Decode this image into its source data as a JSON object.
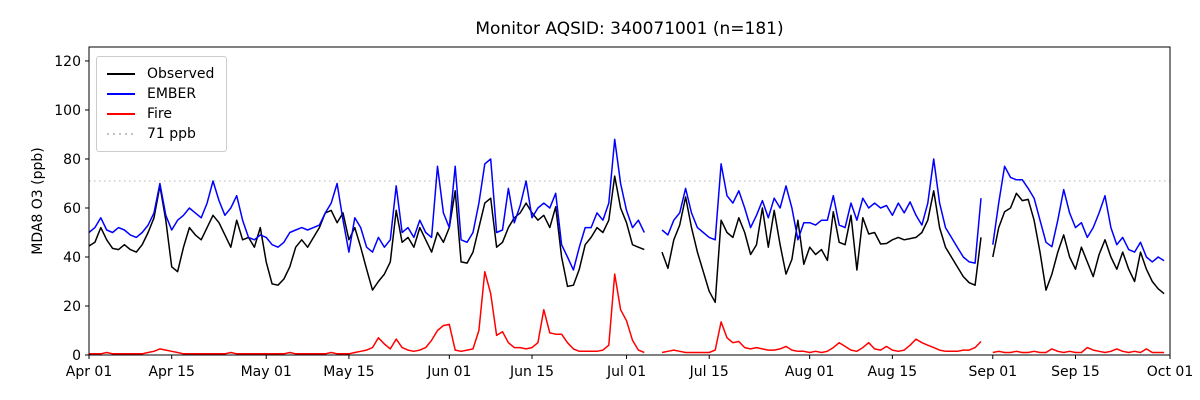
{
  "chart_data": {
    "type": "line",
    "title": "Monitor AQSID: 340071001 (n=181)",
    "ylabel": "MDA8 O3 (ppb)",
    "xlabel": "",
    "grid": false,
    "legend_position": "upper left",
    "ylim": [
      0,
      125.7
    ],
    "y_ticks": [
      0,
      20,
      40,
      60,
      80,
      100,
      120
    ],
    "x_range_days": 183,
    "x_ticks": [
      {
        "day": 0,
        "label": "Apr 01"
      },
      {
        "day": 14,
        "label": "Apr 15"
      },
      {
        "day": 30,
        "label": "May 01"
      },
      {
        "day": 44,
        "label": "May 15"
      },
      {
        "day": 61,
        "label": "Jun 01"
      },
      {
        "day": 75,
        "label": "Jun 15"
      },
      {
        "day": 91,
        "label": "Jul 01"
      },
      {
        "day": 105,
        "label": "Jul 15"
      },
      {
        "day": 122,
        "label": "Aug 01"
      },
      {
        "day": 136,
        "label": "Aug 15"
      },
      {
        "day": 153,
        "label": "Sep 01"
      },
      {
        "day": 167,
        "label": "Sep 15"
      },
      {
        "day": 183,
        "label": "Oct 01"
      }
    ],
    "threshold": {
      "value": 71,
      "label": "71 ppb",
      "color": "#c4c4c4",
      "style": "dotted"
    },
    "series": [
      {
        "name": "Observed",
        "color": "#000000",
        "values": [
          44.5,
          46,
          52,
          47,
          43.5,
          43,
          45,
          43,
          42,
          45,
          50,
          56,
          69,
          55,
          36,
          34,
          44,
          52,
          49,
          47,
          52,
          57,
          54,
          49,
          44,
          55,
          47,
          48,
          44,
          52,
          38,
          29,
          28.5,
          31,
          36,
          44,
          47,
          44,
          48,
          52,
          58,
          59,
          54,
          58,
          47,
          52,
          44,
          35,
          26.5,
          30,
          33,
          38,
          59,
          46,
          48,
          44,
          52,
          47,
          42,
          50,
          46,
          52,
          67,
          38,
          37.5,
          42,
          52,
          62,
          64,
          44,
          46,
          52,
          56,
          58,
          62,
          58,
          55,
          57,
          52,
          60.5,
          40,
          28,
          28.5,
          35,
          45,
          48,
          52,
          50,
          55,
          73,
          60,
          54,
          45,
          44,
          43,
          null,
          null,
          42,
          35.4,
          47,
          53,
          64.5,
          52,
          42,
          34,
          26,
          21.5,
          55,
          50,
          48,
          56,
          50,
          41,
          45,
          60,
          44,
          59,
          45,
          33,
          39,
          55,
          37,
          44,
          41,
          43,
          38.6,
          58.5,
          46,
          45,
          57,
          34.7,
          56,
          49.4,
          50,
          45.3,
          45.5,
          47,
          48,
          47,
          47.5,
          48,
          50,
          55,
          67,
          52,
          44,
          40,
          36,
          32,
          29.5,
          28.5,
          48,
          null,
          40,
          52,
          58.5,
          60,
          66,
          63,
          63.5,
          55,
          42,
          26.5,
          33,
          42,
          49,
          40,
          35,
          44,
          38,
          32,
          41,
          47,
          40,
          35,
          42,
          35,
          30,
          42,
          35,
          30,
          27,
          25
        ]
      },
      {
        "name": "EMBER",
        "color": "#0000ff",
        "values": [
          50,
          52,
          56,
          51,
          50,
          52,
          51,
          49,
          48,
          50,
          53,
          58,
          70,
          57,
          51,
          55,
          57,
          60,
          58,
          56,
          62,
          71,
          63,
          57,
          60,
          65,
          55,
          48,
          47,
          49,
          48,
          45,
          44,
          46,
          50,
          51,
          52,
          51,
          52,
          53,
          58,
          62,
          70,
          55,
          42,
          56,
          52,
          44,
          42,
          48,
          44,
          47,
          69,
          50,
          52,
          48,
          55,
          50,
          48,
          77,
          58,
          52,
          77,
          47,
          46,
          50,
          62,
          78,
          80,
          50,
          51,
          68,
          54,
          61,
          71,
          56,
          60,
          62,
          60,
          66,
          45,
          40,
          34.7,
          44,
          52,
          52,
          58,
          55,
          62,
          88,
          70,
          59,
          52,
          55,
          50,
          null,
          null,
          51,
          49,
          55,
          58,
          68,
          58,
          52,
          50,
          48,
          47,
          78,
          65,
          62,
          67,
          60,
          52,
          57,
          63,
          56,
          64,
          60,
          69,
          60,
          47,
          54,
          54,
          53,
          55,
          55,
          65,
          53,
          52,
          62,
          55,
          64,
          60,
          62,
          60,
          61,
          57,
          62,
          58,
          62.5,
          57,
          53,
          62,
          80,
          62,
          52,
          48,
          44,
          40,
          38,
          37.5,
          64,
          null,
          45,
          62,
          77,
          72.5,
          71.5,
          71.5,
          68,
          64,
          55,
          46,
          44.2,
          55,
          67.5,
          58,
          52,
          54,
          48,
          52,
          58,
          65,
          52,
          45,
          48,
          43,
          42,
          46,
          40,
          38,
          40,
          38.5
        ]
      },
      {
        "name": "Fire",
        "color": "#ff0000",
        "values": [
          0.5,
          0.5,
          0.5,
          1,
          0.5,
          0.5,
          0.5,
          0.5,
          0.5,
          0.5,
          1,
          1.5,
          2.5,
          2,
          1.5,
          1,
          0.5,
          0.5,
          0.5,
          0.5,
          0.5,
          0.5,
          0.5,
          0.5,
          1,
          0.5,
          0.5,
          0.5,
          0.5,
          0.5,
          0.5,
          0.5,
          0.5,
          0.5,
          1,
          0.5,
          0.5,
          0.5,
          0.5,
          0.5,
          0.5,
          1,
          0.5,
          0.5,
          0.5,
          1,
          1.5,
          2,
          3,
          7,
          4.5,
          2.5,
          6.5,
          3,
          2,
          1.5,
          2,
          3,
          6,
          10,
          12,
          12.5,
          2,
          1.5,
          2,
          2.5,
          10,
          34,
          25,
          8,
          9.5,
          5,
          3,
          3,
          2.5,
          3,
          5,
          18.5,
          9,
          8.5,
          8.5,
          5,
          2.5,
          1.5,
          1.5,
          1.5,
          1.5,
          2,
          4,
          33,
          18.5,
          14,
          6,
          2,
          1,
          null,
          null,
          1,
          1.5,
          2,
          1.5,
          1,
          1,
          1,
          1,
          1,
          2,
          13.5,
          7,
          5,
          5.5,
          3,
          2.5,
          3,
          2.5,
          2,
          2,
          2.5,
          3.5,
          2,
          1.5,
          1.5,
          1,
          1.5,
          1,
          1.5,
          3,
          5,
          3.5,
          2,
          1.5,
          3,
          5,
          2.5,
          2,
          3.5,
          2,
          1.5,
          2,
          4,
          6.5,
          5,
          4,
          3,
          2,
          1.5,
          1.5,
          1.5,
          2,
          2,
          3,
          5.5,
          null,
          1,
          1.5,
          1,
          1,
          1.5,
          1,
          1,
          1.5,
          1,
          1,
          2.5,
          1.5,
          1,
          1.5,
          1,
          1,
          3,
          2,
          1.5,
          1,
          1.5,
          2.5,
          1.5,
          1,
          1.5,
          1,
          2.5,
          1,
          1,
          1
        ]
      }
    ]
  }
}
